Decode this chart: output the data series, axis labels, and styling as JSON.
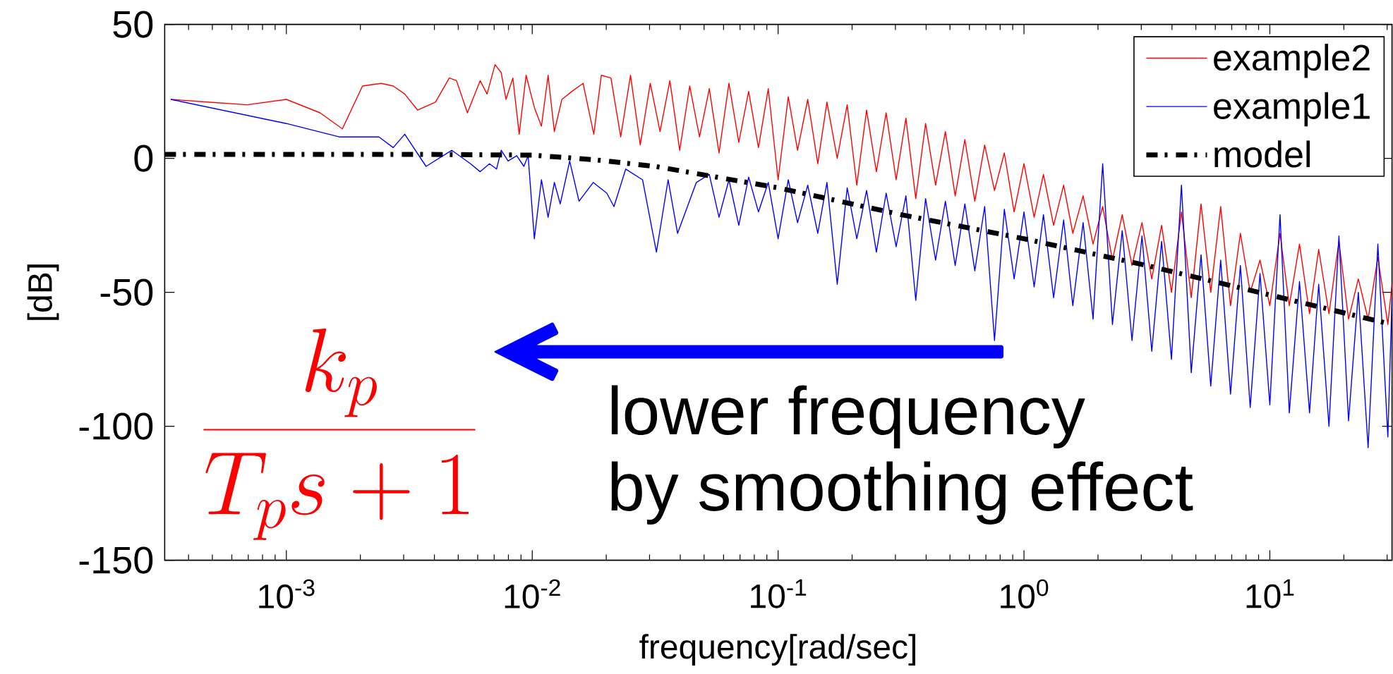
{
  "chart_data": {
    "type": "line",
    "xlabel": "frequency[rad/sec]",
    "ylabel": "[dB]",
    "annotations": [
      "\\frac{k_p}{T_ps+1}",
      "lower frequency",
      "by smoothing effect"
    ],
    "log": "x",
    "legend": "top right",
    "xlim": [
      0.00032,
      31.4
    ],
    "ylim": [
      -150,
      50
    ],
    "xticks": [
      {
        "value": 0.001,
        "label": "10$^{-3}$"
      },
      {
        "value": 0.01,
        "label": "10$^{-2}$"
      },
      {
        "value": 0.1,
        "label": "10$^{-1}$"
      },
      {
        "value": 1,
        "label": "10$^{0}$"
      },
      {
        "value": 10,
        "label": "10$^{1}$"
      }
    ],
    "yticks": [
      -150,
      -100,
      -50,
      0,
      50
    ],
    "series": [
      {
        "name": "example2",
        "color": "#ff0000",
        "line_style": "solid",
        "x": [
          0.000339,
          0.000477,
          0.000693,
          0.001,
          0.00137,
          0.00169,
          0.00204,
          0.00243,
          0.00272,
          0.00303,
          0.00342,
          0.00404,
          0.0046,
          0.00492,
          0.00545,
          0.00614,
          0.00655,
          0.00706,
          0.00748,
          0.00782,
          0.00834,
          0.00885,
          0.00944,
          0.0102,
          0.0109,
          0.0116,
          0.0123,
          0.0132,
          0.0145,
          0.0161,
          0.0178,
          0.0191,
          0.0209,
          0.0229,
          0.0251,
          0.0275,
          0.0302,
          0.0331,
          0.0363,
          0.0398,
          0.0437,
          0.0479,
          0.0525,
          0.0575,
          0.0631,
          0.0692,
          0.0759,
          0.0832,
          0.0912,
          0.1,
          0.11,
          0.12,
          0.132,
          0.145,
          0.158,
          0.174,
          0.191,
          0.209,
          0.229,
          0.251,
          0.275,
          0.302,
          0.331,
          0.363,
          0.398,
          0.437,
          0.479,
          0.525,
          0.575,
          0.631,
          0.692,
          0.759,
          0.832,
          0.912,
          1,
          1.1,
          1.2,
          1.32,
          1.45,
          1.58,
          1.74,
          1.91,
          2.09,
          2.29,
          2.51,
          2.75,
          3.02,
          3.31,
          3.63,
          3.98,
          4.37,
          4.79,
          5.25,
          5.75,
          6.31,
          6.92,
          7.59,
          8.32,
          9.12,
          10,
          11,
          12,
          13.2,
          14.5,
          15.8,
          17.4,
          19.1,
          20.9,
          22.9,
          25.1,
          27.5,
          30.2,
          31.4
        ],
        "values": [
          22,
          21,
          20,
          22,
          17,
          11,
          27,
          28,
          27,
          24,
          18,
          21,
          30,
          29,
          17,
          29,
          24,
          35,
          32,
          22,
          30,
          9,
          31,
          19,
          12,
          31,
          10,
          22,
          25,
          28,
          9,
          31,
          30,
          8,
          31,
          5,
          28,
          10,
          29,
          3,
          27,
          8,
          26,
          2,
          28,
          6,
          25,
          4,
          26,
          -8,
          23,
          3,
          22,
          -2,
          21,
          0,
          20,
          -10,
          18,
          -5,
          17,
          -8,
          15,
          -15,
          13,
          -10,
          10,
          -14,
          7,
          -16,
          5,
          -12,
          2,
          -20,
          -2,
          -22,
          -6,
          -25,
          -10,
          -28,
          -14,
          -32,
          -18,
          -38,
          -21,
          -40,
          -24,
          -45,
          -25,
          -50,
          -20,
          -52,
          -17,
          -50,
          -18,
          -55,
          -28,
          -50,
          -38,
          -55,
          -28,
          -55,
          -32,
          -58,
          -34,
          -58,
          -31,
          -60,
          -45,
          -60,
          -37,
          -62,
          -47
        ]
      },
      {
        "name": "example1",
        "color": "#0000ff",
        "line_style": "solid",
        "x": [
          0.000339,
          0.001,
          0.00164,
          0.00222,
          0.00238,
          0.00272,
          0.00303,
          0.0037,
          0.00471,
          0.00561,
          0.00614,
          0.0067,
          0.00716,
          0.00748,
          0.00798,
          0.00865,
          0.00925,
          0.00962,
          0.0102,
          0.0109,
          0.0116,
          0.0123,
          0.013,
          0.0142,
          0.0155,
          0.0177,
          0.0201,
          0.0215,
          0.024,
          0.0281,
          0.032,
          0.0357,
          0.039,
          0.0465,
          0.0525,
          0.0575,
          0.0631,
          0.0692,
          0.0759,
          0.0832,
          0.0912,
          0.1,
          0.11,
          0.12,
          0.132,
          0.145,
          0.158,
          0.174,
          0.191,
          0.209,
          0.229,
          0.251,
          0.275,
          0.302,
          0.331,
          0.363,
          0.398,
          0.437,
          0.479,
          0.525,
          0.575,
          0.631,
          0.692,
          0.759,
          0.832,
          0.912,
          1,
          1.1,
          1.2,
          1.32,
          1.45,
          1.58,
          1.74,
          1.91,
          2.09,
          2.29,
          2.51,
          2.75,
          3.02,
          3.31,
          3.63,
          3.98,
          4.37,
          4.79,
          5.25,
          5.75,
          6.31,
          6.92,
          7.59,
          8.32,
          9.12,
          10,
          11,
          12,
          13.2,
          14.5,
          15.8,
          17.4,
          19.1,
          20.9,
          22.9,
          25.1,
          27.5,
          30.2,
          31.4
        ],
        "values": [
          22,
          13,
          8,
          8,
          8,
          4,
          9,
          -3,
          3,
          -2,
          -5,
          -2,
          -4,
          3,
          -1,
          1,
          -3,
          1,
          -30,
          -8,
          -22,
          -9,
          -17,
          -1,
          -16,
          -9,
          -13,
          -18,
          -4,
          -8,
          -35,
          -8,
          -28,
          -9,
          -6,
          -22,
          -8,
          -25,
          -7,
          -20,
          -9,
          -30,
          -8,
          -24,
          -10,
          -28,
          -9,
          -47,
          -11,
          -30,
          -12,
          -35,
          -13,
          -33,
          -14,
          -53,
          -15,
          -38,
          -16,
          -40,
          -17,
          -42,
          -18,
          -68,
          -19,
          -45,
          -20,
          -48,
          -21,
          -52,
          -23,
          -55,
          -24,
          -60,
          -2,
          -62,
          -27,
          -68,
          -29,
          -72,
          -31,
          -75,
          -10,
          -80,
          -36,
          -85,
          -38,
          -88,
          -40,
          -93,
          -43,
          -92,
          -21,
          -95,
          -46,
          -95,
          -47,
          -100,
          -29,
          -98,
          -50,
          -108,
          -32,
          -104,
          -52
        ]
      },
      {
        "name": "model",
        "color": "#000000",
        "line_style": "dashdot",
        "x": [
          0.00032,
          0.001,
          0.00316,
          0.01,
          0.0178,
          0.0316,
          0.0562,
          0.1,
          0.316,
          1,
          3.16,
          10,
          31.4
        ],
        "values": [
          1.5,
          1.5,
          1.5,
          1.2,
          -0.5,
          -3,
          -7,
          -11,
          -21,
          -30,
          -40,
          -51,
          -62
        ]
      }
    ]
  }
}
